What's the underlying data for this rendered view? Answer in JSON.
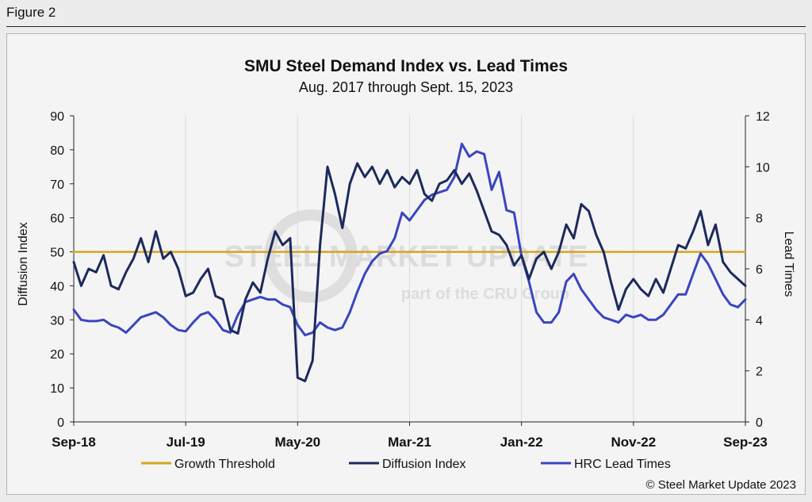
{
  "figure_label": "Figure 2",
  "copyright": "© Steel Market Update 2023",
  "watermark": {
    "brand_line1": "STEEL MARKET UPDATE",
    "brand_line2": "part of the CRU Group"
  },
  "colors": {
    "threshold": "#d4a51f",
    "diffusion": "#1c2a5c",
    "hrc": "#3a45c0",
    "grid": "#d9d9d9",
    "axis": "#222222"
  },
  "chart_data": {
    "type": "line",
    "title": "SMU Steel Demand Index vs. Lead Times",
    "subtitle": "Aug. 2017 through Sept. 15, 2023",
    "ylabel_left": "Diffusion Index",
    "ylabel_right": "Lead Times",
    "ylim_left": [
      0,
      90
    ],
    "ylim_right": [
      0,
      12
    ],
    "yticks_left": [
      "0",
      "10",
      "20",
      "30",
      "40",
      "50",
      "60",
      "70",
      "80",
      "90"
    ],
    "yticks_right": [
      "0",
      "2",
      "4",
      "6",
      "8",
      "10",
      "12"
    ],
    "xticks": [
      "Sep-18",
      "Jul-19",
      "May-20",
      "Mar-21",
      "Jan-22",
      "Nov-22",
      "Sep-23"
    ],
    "x_index_range": [
      0,
      180
    ],
    "xtick_index": [
      0,
      30,
      60,
      90,
      120,
      150,
      180
    ],
    "grid": "vertical",
    "legend_position": "bottom",
    "legend": [
      "Growth Threshold",
      "Diffusion Index",
      "HRC Lead Times"
    ],
    "series": [
      {
        "name": "Growth Threshold",
        "axis": "left",
        "x": [
          0,
          180
        ],
        "values": [
          50,
          50
        ]
      },
      {
        "name": "Diffusion Index",
        "axis": "left",
        "x": [
          0,
          2,
          4,
          6,
          8,
          10,
          12,
          14,
          16,
          18,
          20,
          22,
          24,
          26,
          28,
          30,
          32,
          34,
          36,
          38,
          40,
          42,
          44,
          46,
          48,
          50,
          52,
          54,
          56,
          58,
          60,
          62,
          64,
          66,
          68,
          70,
          72,
          74,
          76,
          78,
          80,
          82,
          84,
          86,
          88,
          90,
          92,
          94,
          96,
          98,
          100,
          102,
          104,
          106,
          108,
          110,
          112,
          114,
          116,
          118,
          120,
          122,
          124,
          126,
          128,
          130,
          132,
          134,
          136,
          138,
          140,
          142,
          144,
          146,
          148,
          150,
          152,
          154,
          156,
          158,
          160,
          162,
          164,
          166,
          168,
          170,
          172,
          174,
          176,
          178,
          180
        ],
        "values": [
          47,
          40,
          45,
          44,
          49,
          40,
          39,
          44,
          48,
          54,
          47,
          56,
          48,
          50,
          45,
          37,
          38,
          42,
          45,
          37,
          36,
          27,
          26,
          36,
          41,
          38,
          48,
          56,
          52,
          54,
          13,
          12,
          18,
          52,
          75,
          67,
          57,
          70,
          76,
          72,
          75,
          70,
          74,
          69,
          72,
          70,
          74,
          67,
          65,
          70,
          71,
          74,
          70,
          73,
          68,
          62,
          56,
          55,
          52,
          46,
          49,
          42,
          48,
          50,
          45,
          50,
          58,
          54,
          64,
          62,
          55,
          50,
          41,
          33,
          39,
          42,
          39,
          37,
          42,
          38,
          45,
          52,
          51,
          56,
          62,
          52,
          58,
          47,
          44,
          42,
          40
        ]
      },
      {
        "name": "HRC Lead Times",
        "axis": "right",
        "x": [
          0,
          2,
          4,
          6,
          8,
          10,
          12,
          14,
          16,
          18,
          20,
          22,
          24,
          26,
          28,
          30,
          32,
          34,
          36,
          38,
          40,
          42,
          44,
          46,
          48,
          50,
          52,
          54,
          56,
          58,
          60,
          62,
          64,
          66,
          68,
          70,
          72,
          74,
          76,
          78,
          80,
          82,
          84,
          86,
          88,
          90,
          92,
          94,
          96,
          98,
          100,
          102,
          104,
          106,
          108,
          110,
          112,
          114,
          116,
          118,
          120,
          122,
          124,
          126,
          128,
          130,
          132,
          134,
          136,
          138,
          140,
          142,
          144,
          146,
          148,
          150,
          152,
          154,
          156,
          158,
          160,
          162,
          164,
          166,
          168,
          170,
          172,
          174,
          176,
          178,
          180
        ],
        "values": [
          4.4,
          4.0,
          3.95,
          3.95,
          4.0,
          3.8,
          3.7,
          3.5,
          3.8,
          4.1,
          4.2,
          4.3,
          4.1,
          3.8,
          3.6,
          3.55,
          3.9,
          4.2,
          4.3,
          4.0,
          3.6,
          3.5,
          4.2,
          4.7,
          4.8,
          4.9,
          4.8,
          4.8,
          4.6,
          4.5,
          3.8,
          3.4,
          3.5,
          3.9,
          3.7,
          3.6,
          3.7,
          4.3,
          5.1,
          5.8,
          6.3,
          6.6,
          6.7,
          7.2,
          8.2,
          7.9,
          8.3,
          8.7,
          8.9,
          9.0,
          9.1,
          9.6,
          10.9,
          10.4,
          10.6,
          10.5,
          9.1,
          9.8,
          8.3,
          8.2,
          6.5,
          5.5,
          4.3,
          3.9,
          3.9,
          4.3,
          5.5,
          5.8,
          5.2,
          4.8,
          4.4,
          4.1,
          4.0,
          3.9,
          4.2,
          4.1,
          4.2,
          4.0,
          4.0,
          4.2,
          4.6,
          5.0,
          5.0,
          5.8,
          6.6,
          6.2,
          5.6,
          5.0,
          4.6,
          4.5,
          4.8
        ]
      }
    ]
  }
}
